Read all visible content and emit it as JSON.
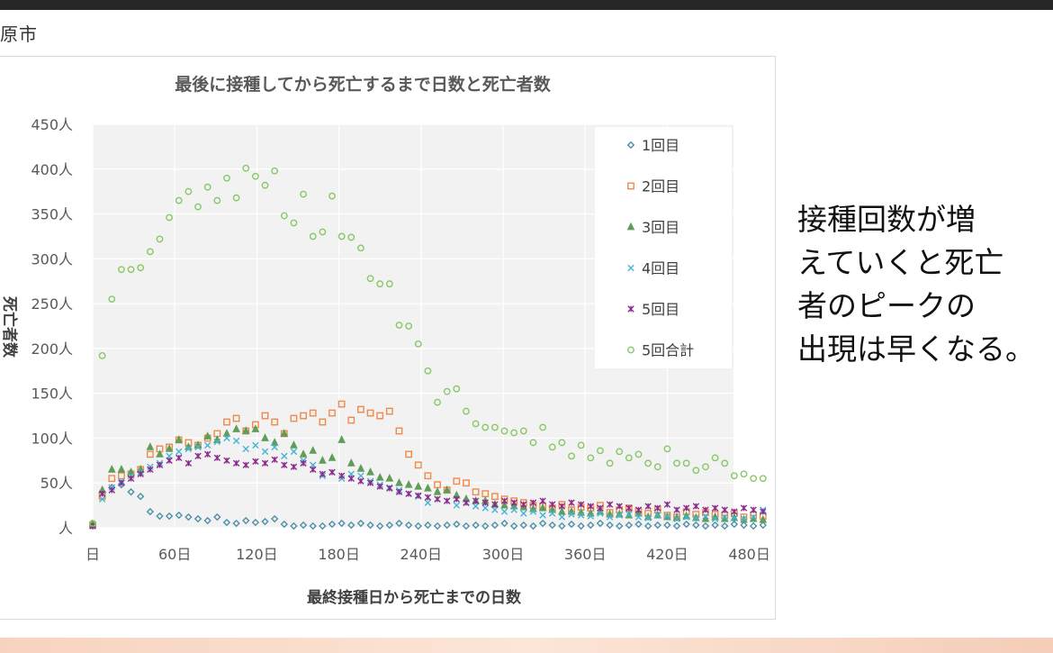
{
  "slide": {
    "label": "原市"
  },
  "side_note": {
    "lines": [
      "接種回数が増",
      "えていくと死亡",
      "者のピークの",
      "出現は早くなる。"
    ]
  },
  "colors": {
    "1回目": "#4f8fa8",
    "2回目": "#ee8a4a",
    "3回目": "#5f9d58",
    "4回目": "#44b4d6",
    "5回目": "#8c2a8c",
    "5回合計": "#87c766"
  },
  "chart_data": {
    "type": "scatter",
    "title": "最後に接種してから死亡するまで日数と死亡者数",
    "xlabel": "最終接種日から死亡までの日数",
    "ylabel": "死亡者数",
    "xlim": [
      0,
      490
    ],
    "ylim": [
      0,
      450
    ],
    "x_ticks": [
      0,
      60,
      120,
      180,
      240,
      300,
      360,
      420,
      480
    ],
    "x_tick_labels": [
      "日",
      "60日",
      "120日",
      "180日",
      "240日",
      "300日",
      "360日",
      "420日",
      "480日"
    ],
    "y_ticks": [
      0,
      50,
      100,
      150,
      200,
      250,
      300,
      350,
      400,
      450
    ],
    "y_tick_labels": [
      "人",
      "50人",
      "100人",
      "150人",
      "200人",
      "250人",
      "300人",
      "350人",
      "400人",
      "450人"
    ],
    "grid": true,
    "legend_position": "top-right",
    "series": [
      {
        "name": "1回目",
        "marker": "diamond",
        "x": [
          0,
          7,
          14,
          21,
          28,
          35,
          42,
          49,
          56,
          63,
          70,
          77,
          84,
          91,
          98,
          105,
          112,
          119,
          126,
          133,
          140,
          147,
          154,
          161,
          168,
          175,
          182,
          189,
          196,
          203,
          210,
          217,
          224,
          231,
          238,
          245,
          252,
          259,
          266,
          273,
          280,
          287,
          294,
          301,
          308,
          315,
          322,
          329,
          336,
          343,
          350,
          357,
          364,
          371,
          378,
          385,
          392,
          399,
          406,
          413,
          420,
          427,
          434,
          441,
          448,
          455,
          462,
          469,
          476,
          483,
          490
        ],
        "y": [
          2,
          40,
          45,
          48,
          40,
          35,
          18,
          13,
          13,
          14,
          12,
          10,
          8,
          12,
          6,
          5,
          8,
          6,
          7,
          10,
          4,
          2,
          3,
          2,
          2,
          4,
          5,
          3,
          5,
          3,
          2,
          3,
          5,
          3,
          2,
          3,
          2,
          3,
          4,
          2,
          3,
          2,
          3,
          5,
          2,
          3,
          2,
          5,
          3,
          2,
          4,
          2,
          3,
          5,
          3,
          2,
          3,
          4,
          2,
          3,
          3,
          2,
          4,
          3,
          2,
          3,
          2,
          4,
          3,
          2,
          3
        ]
      },
      {
        "name": "2回目",
        "marker": "square",
        "x": [
          0,
          7,
          14,
          21,
          28,
          35,
          42,
          49,
          56,
          63,
          70,
          77,
          84,
          91,
          98,
          105,
          112,
          119,
          126,
          133,
          140,
          147,
          154,
          161,
          168,
          175,
          182,
          189,
          196,
          203,
          210,
          217,
          224,
          231,
          238,
          245,
          252,
          259,
          266,
          273,
          280,
          287,
          294,
          301,
          308,
          315,
          322,
          329,
          336,
          343,
          350,
          357,
          364,
          371,
          378,
          385,
          392,
          399,
          406,
          413,
          420,
          427,
          434,
          441,
          448,
          455,
          462,
          469,
          476,
          483,
          490
        ],
        "y": [
          3,
          35,
          55,
          58,
          60,
          65,
          82,
          88,
          90,
          98,
          95,
          92,
          100,
          105,
          118,
          122,
          108,
          115,
          125,
          118,
          105,
          122,
          125,
          128,
          118,
          128,
          138,
          120,
          132,
          128,
          125,
          130,
          108,
          82,
          70,
          58,
          48,
          42,
          52,
          50,
          40,
          38,
          35,
          32,
          30,
          28,
          25,
          24,
          22,
          26,
          20,
          23,
          22,
          25,
          17,
          20,
          22,
          18,
          16,
          20,
          14,
          12,
          18,
          15,
          17,
          15,
          14,
          16,
          12,
          14,
          13
        ]
      },
      {
        "name": "3回目",
        "marker": "triangle",
        "x": [
          0,
          7,
          14,
          21,
          28,
          35,
          42,
          49,
          56,
          63,
          70,
          77,
          84,
          91,
          98,
          105,
          112,
          119,
          126,
          133,
          140,
          147,
          154,
          161,
          168,
          175,
          182,
          189,
          196,
          203,
          210,
          217,
          224,
          231,
          238,
          245,
          252,
          259,
          266,
          273,
          280,
          287,
          294,
          301,
          308,
          315,
          322,
          329,
          336,
          343,
          350,
          357,
          364,
          371,
          378,
          385,
          392,
          399,
          406,
          413,
          420,
          427,
          434,
          441,
          448,
          455,
          462,
          469,
          476,
          483,
          490
        ],
        "y": [
          4,
          42,
          65,
          65,
          62,
          65,
          90,
          82,
          88,
          98,
          90,
          92,
          102,
          98,
          105,
          110,
          108,
          110,
          100,
          95,
          105,
          92,
          82,
          86,
          75,
          78,
          98,
          72,
          66,
          62,
          56,
          55,
          50,
          48,
          46,
          44,
          40,
          42,
          36,
          32,
          30,
          30,
          26,
          25,
          24,
          23,
          21,
          22,
          20,
          18,
          18,
          17,
          16,
          18,
          15,
          15,
          14,
          16,
          12,
          14,
          12,
          11,
          13,
          11,
          10,
          12,
          10,
          11,
          9,
          10,
          9
        ]
      },
      {
        "name": "4回目",
        "marker": "x",
        "x": [
          0,
          7,
          14,
          21,
          28,
          35,
          42,
          49,
          56,
          63,
          70,
          77,
          84,
          91,
          98,
          105,
          112,
          119,
          126,
          133,
          140,
          147,
          154,
          161,
          168,
          175,
          182,
          189,
          196,
          203,
          210,
          217,
          224,
          231,
          238,
          245,
          252,
          259,
          266,
          273,
          280,
          287,
          294,
          301,
          308,
          315,
          322,
          329,
          336,
          343,
          350,
          357,
          364,
          371,
          378,
          385,
          392,
          399,
          406,
          413,
          420,
          427,
          434,
          441,
          448,
          455,
          462,
          469,
          476,
          483,
          490
        ],
        "y": [
          2,
          32,
          45,
          52,
          58,
          62,
          68,
          72,
          80,
          85,
          88,
          90,
          92,
          96,
          100,
          97,
          88,
          92,
          85,
          90,
          80,
          85,
          75,
          70,
          58,
          62,
          55,
          60,
          58,
          52,
          48,
          45,
          42,
          38,
          35,
          28,
          32,
          30,
          25,
          28,
          24,
          22,
          20,
          18,
          20,
          16,
          18,
          14,
          16,
          12,
          15,
          14,
          13,
          16,
          12,
          14,
          15,
          12,
          11,
          14,
          13,
          10,
          12,
          11,
          13,
          10,
          12,
          11,
          10,
          12,
          20
        ]
      },
      {
        "name": "5回目",
        "marker": "star",
        "x": [
          0,
          7,
          14,
          21,
          28,
          35,
          42,
          49,
          56,
          63,
          70,
          77,
          84,
          91,
          98,
          105,
          112,
          119,
          126,
          133,
          140,
          147,
          154,
          161,
          168,
          175,
          182,
          189,
          196,
          203,
          210,
          217,
          224,
          231,
          238,
          245,
          252,
          259,
          266,
          273,
          280,
          287,
          294,
          301,
          308,
          315,
          322,
          329,
          336,
          343,
          350,
          357,
          364,
          371,
          378,
          385,
          392,
          399,
          406,
          413,
          420,
          427,
          434,
          441,
          448,
          455,
          462,
          469,
          476,
          483,
          490
        ],
        "y": [
          2,
          38,
          42,
          50,
          55,
          60,
          65,
          70,
          75,
          78,
          72,
          80,
          82,
          78,
          75,
          72,
          70,
          74,
          72,
          76,
          70,
          68,
          72,
          65,
          60,
          62,
          58,
          55,
          52,
          50,
          46,
          44,
          40,
          38,
          36,
          34,
          32,
          30,
          32,
          28,
          30,
          28,
          26,
          30,
          28,
          26,
          28,
          30,
          26,
          24,
          28,
          26,
          24,
          22,
          26,
          24,
          22,
          20,
          24,
          22,
          26,
          20,
          22,
          24,
          20,
          22,
          20,
          18,
          22,
          20,
          18
        ]
      },
      {
        "name": "5回合計",
        "marker": "circle",
        "x": [
          0,
          7,
          14,
          21,
          28,
          35,
          42,
          49,
          56,
          63,
          70,
          77,
          84,
          91,
          98,
          105,
          112,
          119,
          126,
          133,
          140,
          147,
          154,
          161,
          168,
          175,
          182,
          189,
          196,
          203,
          210,
          217,
          224,
          231,
          238,
          245,
          252,
          259,
          266,
          273,
          280,
          287,
          294,
          301,
          308,
          315,
          322,
          329,
          336,
          343,
          350,
          357,
          364,
          371,
          378,
          385,
          392,
          399,
          406,
          413,
          420,
          427,
          434,
          441,
          448,
          455,
          462,
          469,
          476,
          483,
          490
        ],
        "y": [
          5,
          192,
          255,
          288,
          288,
          290,
          308,
          322,
          346,
          365,
          375,
          358,
          380,
          365,
          390,
          368,
          401,
          392,
          382,
          398,
          348,
          340,
          372,
          325,
          330,
          370,
          325,
          324,
          312,
          278,
          272,
          272,
          226,
          225,
          205,
          175,
          140,
          152,
          155,
          130,
          116,
          112,
          112,
          108,
          106,
          108,
          95,
          112,
          90,
          95,
          80,
          92,
          78,
          86,
          72,
          85,
          78,
          82,
          72,
          68,
          88,
          72,
          72,
          64,
          68,
          78,
          72,
          58,
          60,
          55,
          55
        ]
      }
    ]
  }
}
